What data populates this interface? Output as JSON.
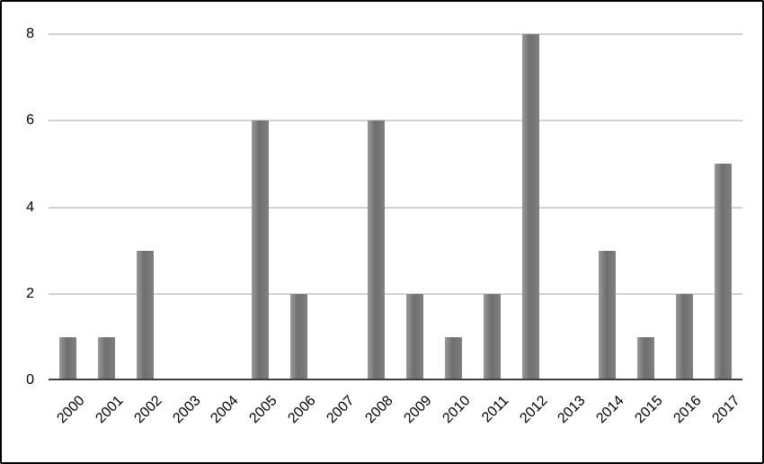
{
  "chart_data": {
    "type": "bar",
    "categories": [
      "2000",
      "2001",
      "2002",
      "2003",
      "2004",
      "2005",
      "2006",
      "2007",
      "2008",
      "2009",
      "2010",
      "2011",
      "2012",
      "2013",
      "2014",
      "2015",
      "2016",
      "2017"
    ],
    "values": [
      1,
      1,
      3,
      0,
      0,
      6,
      2,
      0,
      6,
      2,
      1,
      2,
      8,
      0,
      3,
      1,
      2,
      5
    ],
    "xlabel": "",
    "ylabel": "",
    "ylim": [
      0,
      8
    ],
    "yticks": [
      0,
      2,
      4,
      6,
      8
    ],
    "grid": true,
    "legend": false,
    "bar_color_dark": "#6e6e6e",
    "bar_color_light": "#9a9a9a",
    "gridline_color": "#a6a6a6",
    "axis_color": "#404040",
    "border_color": "#000000"
  }
}
